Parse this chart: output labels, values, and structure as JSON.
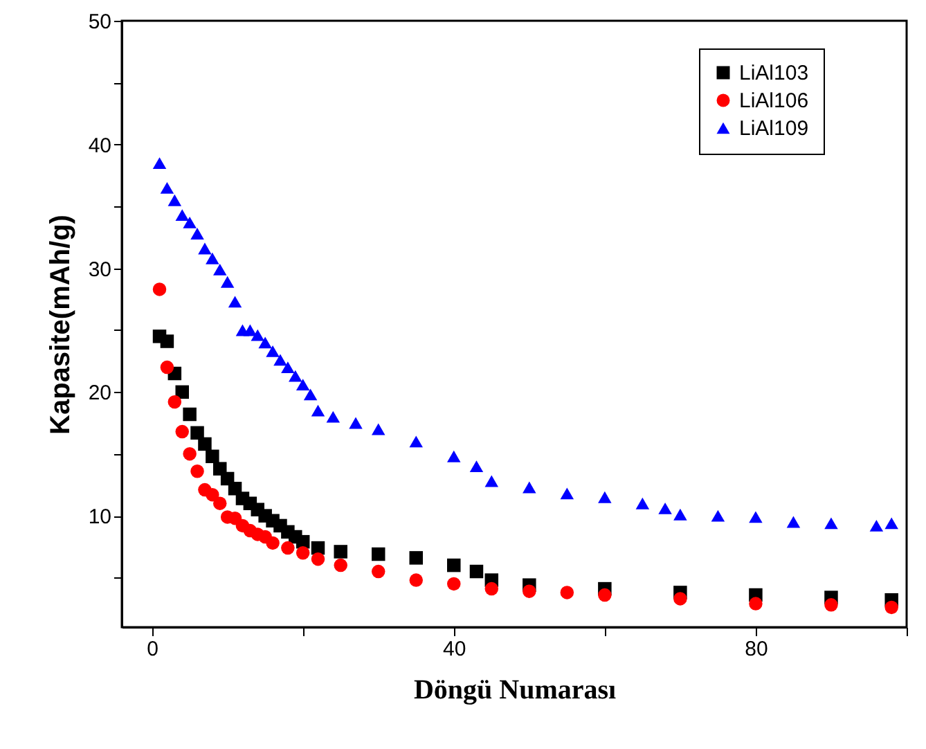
{
  "chart_data": {
    "type": "scatter",
    "xlabel": "Döngü Numarası",
    "ylabel": "Kapasite(mAh/g)",
    "xlim": [
      -4,
      100
    ],
    "ylim": [
      1,
      50
    ],
    "xticks": [
      0,
      {
        "value": 20,
        "label": null
      },
      40,
      {
        "value": 60,
        "label": null
      },
      80,
      {
        "value": 100,
        "label": null
      }
    ],
    "yticks": [
      {
        "value": 5,
        "label": null
      },
      10,
      {
        "value": 15,
        "label": null
      },
      20,
      {
        "value": 25,
        "label": null
      },
      30,
      {
        "value": 35,
        "label": null
      },
      40,
      {
        "value": 45,
        "label": null
      },
      50
    ],
    "grid": false,
    "legend": "top right",
    "series": [
      {
        "name": "LiAl103",
        "color": "#000000",
        "marker": "square",
        "x": [
          1,
          2,
          3,
          4,
          5,
          6,
          7,
          8,
          9,
          10,
          11,
          12,
          13,
          14,
          15,
          16,
          17,
          18,
          19,
          20,
          22,
          25,
          30,
          35,
          40,
          43,
          45,
          50,
          60,
          70,
          80,
          90,
          98
        ],
        "values": [
          24.5,
          24.1,
          21.5,
          20,
          18.2,
          16.7,
          15.8,
          14.8,
          13.8,
          13,
          12.2,
          11.4,
          11,
          10.5,
          10,
          9.6,
          9.2,
          8.7,
          8.3,
          7.9,
          7.4,
          7.1,
          6.9,
          6.6,
          6,
          5.5,
          4.8,
          4.4,
          4.1,
          3.8,
          3.6,
          3.4,
          3.2
        ]
      },
      {
        "name": "LiAl106",
        "color": "#ff0000",
        "marker": "circle",
        "x": [
          1,
          2,
          3,
          4,
          5,
          6,
          7,
          8,
          9,
          10,
          11,
          12,
          13,
          14,
          15,
          16,
          18,
          20,
          22,
          25,
          30,
          35,
          40,
          45,
          50,
          55,
          60,
          70,
          80,
          90,
          98
        ],
        "values": [
          28.3,
          22,
          19.2,
          16.8,
          15,
          13.6,
          12.1,
          11.7,
          11,
          9.9,
          9.8,
          9.2,
          8.8,
          8.5,
          8.3,
          7.8,
          7.4,
          7,
          6.5,
          6,
          5.5,
          4.8,
          4.5,
          4.1,
          3.9,
          3.8,
          3.6,
          3.3,
          2.9,
          2.8,
          2.6
        ]
      },
      {
        "name": "LiAl109",
        "color": "#0000ff",
        "marker": "triangle",
        "x": [
          1,
          2,
          3,
          4,
          5,
          6,
          7,
          8,
          9,
          10,
          11,
          12,
          13,
          14,
          15,
          16,
          17,
          18,
          19,
          20,
          21,
          22,
          24,
          27,
          30,
          35,
          40,
          43,
          45,
          50,
          55,
          60,
          65,
          68,
          70,
          75,
          80,
          85,
          90,
          96,
          98
        ],
        "values": [
          38.5,
          36.5,
          35.5,
          34.3,
          33.7,
          32.8,
          31.6,
          30.8,
          29.9,
          28.9,
          27.3,
          25,
          25,
          24.6,
          24,
          23.3,
          22.6,
          22,
          21.3,
          20.6,
          19.8,
          18.5,
          18,
          17.5,
          17,
          16,
          14.8,
          14,
          12.8,
          12.3,
          11.8,
          11.5,
          11,
          10.6,
          10.1,
          10,
          9.9,
          9.5,
          9.4,
          9.2,
          9.4
        ]
      }
    ]
  }
}
